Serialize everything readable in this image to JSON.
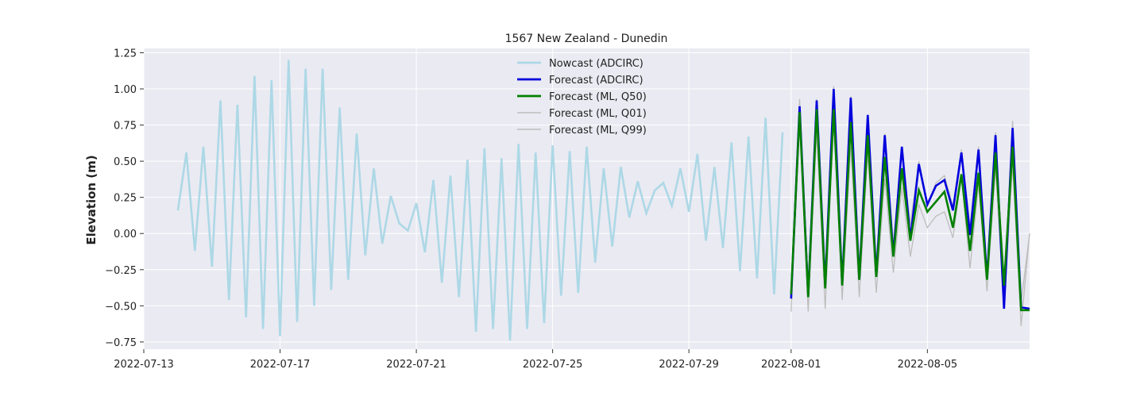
{
  "chart_data": {
    "type": "line",
    "title": "1567 New Zealand - Dunedin",
    "xlabel": "",
    "ylabel": "Elevation (m)",
    "xlim": [
      "2022-07-13",
      "2022-08-08"
    ],
    "ylim": [
      -0.8,
      1.28
    ],
    "x_ticks": [
      "2022-07-13",
      "2022-07-17",
      "2022-07-21",
      "2022-07-25",
      "2022-07-29",
      "2022-08-01",
      "2022-08-05"
    ],
    "y_ticks": [
      -0.75,
      -0.5,
      -0.25,
      0.0,
      0.25,
      0.5,
      0.75,
      1.0,
      1.25
    ],
    "y_tick_labels": [
      "−0.75",
      "−0.50",
      "−0.25",
      "0.00",
      "0.25",
      "0.50",
      "0.75",
      "1.00",
      "1.25"
    ],
    "grid": true,
    "legend_position": "top-center",
    "series": [
      {
        "name": "Nowcast (ADCIRC)",
        "color": "#add8e6",
        "x": [
          "2022-07-14T00:00",
          "2022-07-14T06:00",
          "2022-07-14T12:00",
          "2022-07-14T18:00",
          "2022-07-15T00:00",
          "2022-07-15T06:00",
          "2022-07-15T12:00",
          "2022-07-15T18:00",
          "2022-07-16T00:00",
          "2022-07-16T06:00",
          "2022-07-16T12:00",
          "2022-07-16T18:00",
          "2022-07-17T00:00",
          "2022-07-17T06:00",
          "2022-07-17T12:00",
          "2022-07-17T18:00",
          "2022-07-18T00:00",
          "2022-07-18T06:00",
          "2022-07-18T12:00",
          "2022-07-18T18:00",
          "2022-07-19T00:00",
          "2022-07-19T06:00",
          "2022-07-19T12:00",
          "2022-07-19T18:00",
          "2022-07-20T00:00",
          "2022-07-20T06:00",
          "2022-07-20T12:00",
          "2022-07-20T18:00",
          "2022-07-21T00:00",
          "2022-07-21T06:00",
          "2022-07-21T12:00",
          "2022-07-21T18:00",
          "2022-07-22T00:00",
          "2022-07-22T06:00",
          "2022-07-22T12:00",
          "2022-07-22T18:00",
          "2022-07-23T00:00",
          "2022-07-23T06:00",
          "2022-07-23T12:00",
          "2022-07-23T18:00",
          "2022-07-24T00:00",
          "2022-07-24T06:00",
          "2022-07-24T12:00",
          "2022-07-24T18:00",
          "2022-07-25T00:00",
          "2022-07-25T06:00",
          "2022-07-25T12:00",
          "2022-07-25T18:00",
          "2022-07-26T00:00",
          "2022-07-26T06:00",
          "2022-07-26T12:00",
          "2022-07-26T18:00",
          "2022-07-27T00:00",
          "2022-07-27T06:00",
          "2022-07-27T12:00",
          "2022-07-27T18:00",
          "2022-07-28T00:00",
          "2022-07-28T06:00",
          "2022-07-28T12:00",
          "2022-07-28T18:00",
          "2022-07-29T00:00",
          "2022-07-29T06:00",
          "2022-07-29T12:00",
          "2022-07-29T18:00",
          "2022-07-30T00:00",
          "2022-07-30T06:00",
          "2022-07-30T12:00",
          "2022-07-30T18:00",
          "2022-07-31T00:00",
          "2022-07-31T06:00",
          "2022-07-31T12:00",
          "2022-07-31T18:00"
        ],
        "y": [
          0.16,
          0.56,
          -0.12,
          0.6,
          -0.23,
          0.92,
          -0.46,
          0.89,
          -0.58,
          1.09,
          -0.66,
          1.06,
          -0.71,
          1.2,
          -0.61,
          1.14,
          -0.5,
          1.14,
          -0.39,
          0.87,
          -0.32,
          0.69,
          -0.15,
          0.45,
          -0.07,
          0.26,
          0.07,
          0.02,
          0.21,
          -0.13,
          0.37,
          -0.34,
          0.4,
          -0.44,
          0.51,
          -0.68,
          0.59,
          -0.66,
          0.52,
          -0.74,
          0.62,
          -0.66,
          0.56,
          -0.62,
          0.61,
          -0.43,
          0.57,
          -0.41,
          0.6,
          -0.2,
          0.45,
          -0.09,
          0.46,
          0.11,
          0.36,
          0.14,
          0.3,
          0.35,
          0.19,
          0.45,
          0.15,
          0.55,
          -0.05,
          0.46,
          -0.1,
          0.63,
          -0.26,
          0.67,
          -0.31,
          0.8,
          -0.42,
          0.7
        ]
      },
      {
        "name": "Forecast (ML, Q01)",
        "color": "#bdbdbd",
        "x": [
          "2022-08-01T00:00",
          "2022-08-01T06:00",
          "2022-08-01T12:00",
          "2022-08-01T18:00",
          "2022-08-02T00:00",
          "2022-08-02T06:00",
          "2022-08-02T12:00",
          "2022-08-02T18:00",
          "2022-08-03T00:00",
          "2022-08-03T06:00",
          "2022-08-03T12:00",
          "2022-08-03T18:00",
          "2022-08-04T00:00",
          "2022-08-04T06:00",
          "2022-08-04T12:00",
          "2022-08-04T18:00",
          "2022-08-05T00:00",
          "2022-08-05T06:00",
          "2022-08-05T12:00",
          "2022-08-05T18:00",
          "2022-08-06T00:00",
          "2022-08-06T06:00",
          "2022-08-06T12:00",
          "2022-08-06T18:00",
          "2022-08-07T00:00",
          "2022-08-07T06:00",
          "2022-08-07T12:00",
          "2022-08-07T18:00",
          "2022-08-08T00:00"
        ],
        "y": [
          -0.54,
          0.74,
          -0.54,
          0.7,
          -0.52,
          0.8,
          -0.46,
          0.6,
          -0.44,
          0.56,
          -0.41,
          0.38,
          -0.27,
          0.32,
          -0.16,
          0.2,
          0.04,
          0.12,
          0.15,
          -0.03,
          0.4,
          -0.24,
          0.34,
          -0.4,
          0.45,
          -0.52,
          0.48,
          -0.64,
          0.0
        ]
      },
      {
        "name": "Forecast (ML, Q99)",
        "color": "#bdbdbd",
        "x": [
          "2022-08-01T00:00",
          "2022-08-01T06:00",
          "2022-08-01T12:00",
          "2022-08-01T18:00",
          "2022-08-02T00:00",
          "2022-08-02T06:00",
          "2022-08-02T12:00",
          "2022-08-02T18:00",
          "2022-08-03T00:00",
          "2022-08-03T06:00",
          "2022-08-03T12:00",
          "2022-08-03T18:00",
          "2022-08-04T00:00",
          "2022-08-04T06:00",
          "2022-08-04T12:00",
          "2022-08-04T18:00",
          "2022-08-05T00:00",
          "2022-08-05T06:00",
          "2022-08-05T12:00",
          "2022-08-05T18:00",
          "2022-08-06T00:00",
          "2022-08-06T06:00",
          "2022-08-06T12:00",
          "2022-08-06T18:00",
          "2022-08-07T00:00",
          "2022-08-07T06:00",
          "2022-08-07T12:00",
          "2022-08-07T18:00",
          "2022-08-08T00:00"
        ],
        "y": [
          -0.4,
          0.93,
          -0.37,
          0.93,
          -0.32,
          1.02,
          -0.28,
          0.95,
          -0.22,
          0.82,
          -0.2,
          0.69,
          -0.07,
          0.58,
          0.06,
          0.5,
          0.2,
          0.35,
          0.4,
          0.19,
          0.58,
          0.05,
          0.6,
          -0.28,
          0.7,
          -0.46,
          0.78,
          -0.48,
          0.0
        ]
      },
      {
        "name": "Forecast (ADCIRC)",
        "color": "#0000dd",
        "x": [
          "2022-08-01T00:00",
          "2022-08-01T06:00",
          "2022-08-01T12:00",
          "2022-08-01T18:00",
          "2022-08-02T00:00",
          "2022-08-02T06:00",
          "2022-08-02T12:00",
          "2022-08-02T18:00",
          "2022-08-03T00:00",
          "2022-08-03T06:00",
          "2022-08-03T12:00",
          "2022-08-03T18:00",
          "2022-08-04T00:00",
          "2022-08-04T06:00",
          "2022-08-04T12:00",
          "2022-08-04T18:00",
          "2022-08-05T00:00",
          "2022-08-05T06:00",
          "2022-08-05T12:00",
          "2022-08-05T18:00",
          "2022-08-06T00:00",
          "2022-08-06T06:00",
          "2022-08-06T12:00",
          "2022-08-06T18:00",
          "2022-08-07T00:00",
          "2022-08-07T06:00",
          "2022-08-07T12:00",
          "2022-08-07T18:00",
          "2022-08-08T00:00"
        ],
        "y": [
          -0.45,
          0.88,
          -0.43,
          0.92,
          -0.36,
          1.0,
          -0.35,
          0.94,
          -0.32,
          0.82,
          -0.29,
          0.68,
          -0.15,
          0.6,
          -0.04,
          0.48,
          0.2,
          0.33,
          0.37,
          0.16,
          0.56,
          -0.01,
          0.58,
          -0.31,
          0.68,
          -0.52,
          0.73,
          -0.51,
          -0.52
        ]
      },
      {
        "name": "Forecast (ML, Q50)",
        "color": "#008000",
        "x": [
          "2022-08-01T00:00",
          "2022-08-01T06:00",
          "2022-08-01T12:00",
          "2022-08-01T18:00",
          "2022-08-02T00:00",
          "2022-08-02T06:00",
          "2022-08-02T12:00",
          "2022-08-02T18:00",
          "2022-08-03T00:00",
          "2022-08-03T06:00",
          "2022-08-03T12:00",
          "2022-08-03T18:00",
          "2022-08-04T00:00",
          "2022-08-04T06:00",
          "2022-08-04T12:00",
          "2022-08-04T18:00",
          "2022-08-05T00:00",
          "2022-08-05T06:00",
          "2022-08-05T12:00",
          "2022-08-05T18:00",
          "2022-08-06T00:00",
          "2022-08-06T06:00",
          "2022-08-06T12:00",
          "2022-08-06T18:00",
          "2022-08-07T00:00",
          "2022-08-07T06:00",
          "2022-08-07T12:00",
          "2022-08-07T18:00",
          "2022-08-08T00:00"
        ],
        "y": [
          -0.42,
          0.84,
          -0.44,
          0.86,
          -0.38,
          0.86,
          -0.36,
          0.77,
          -0.32,
          0.68,
          -0.3,
          0.53,
          -0.16,
          0.45,
          -0.05,
          0.3,
          0.15,
          0.22,
          0.29,
          0.04,
          0.41,
          -0.12,
          0.42,
          -0.32,
          0.56,
          -0.36,
          0.6,
          -0.53,
          -0.53
        ]
      }
    ],
    "legend": [
      {
        "label": "Nowcast (ADCIRC)",
        "color": "#add8e6"
      },
      {
        "label": "Forecast (ADCIRC)",
        "color": "#0000dd"
      },
      {
        "label": "Forecast (ML, Q50)",
        "color": "#008000"
      },
      {
        "label": "Forecast (ML, Q01)",
        "color": "#bdbdbd"
      },
      {
        "label": "Forecast (ML, Q99)",
        "color": "#bdbdbd"
      }
    ]
  }
}
